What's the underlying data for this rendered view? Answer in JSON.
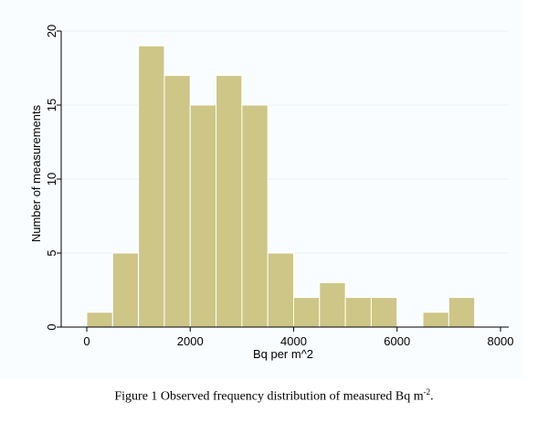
{
  "caption": {
    "main": "Figure 1 Observed frequency distribution of measured Bq m",
    "superscript": "-2",
    "end": "."
  },
  "chart_data": {
    "type": "bar",
    "subtype": "histogram",
    "title": "",
    "xlabel": "Bq per m^2",
    "ylabel": "Number of measurements",
    "xlim": [
      -300,
      8000
    ],
    "ylim": [
      0,
      20
    ],
    "bin_width": 500,
    "bins": [
      {
        "start": 0,
        "end": 500,
        "count": 1
      },
      {
        "start": 500,
        "end": 1000,
        "count": 5
      },
      {
        "start": 1000,
        "end": 1500,
        "count": 19
      },
      {
        "start": 1500,
        "end": 2000,
        "count": 17
      },
      {
        "start": 2000,
        "end": 2500,
        "count": 15
      },
      {
        "start": 2500,
        "end": 3000,
        "count": 17
      },
      {
        "start": 3000,
        "end": 3500,
        "count": 15
      },
      {
        "start": 3500,
        "end": 4000,
        "count": 5
      },
      {
        "start": 4000,
        "end": 4500,
        "count": 2
      },
      {
        "start": 4500,
        "end": 5000,
        "count": 3
      },
      {
        "start": 5000,
        "end": 5500,
        "count": 2
      },
      {
        "start": 5500,
        "end": 6000,
        "count": 2
      },
      {
        "start": 6000,
        "end": 6500,
        "count": 0
      },
      {
        "start": 6500,
        "end": 7000,
        "count": 1
      },
      {
        "start": 7000,
        "end": 7500,
        "count": 2
      }
    ],
    "x_ticks": [
      0,
      2000,
      4000,
      6000,
      8000
    ],
    "x_tick_labels": [
      "0",
      "2000",
      "4000",
      "6000",
      "8000"
    ],
    "y_ticks": [
      0,
      5,
      10,
      15,
      20
    ],
    "y_tick_labels": [
      "0",
      "5",
      "10",
      "15",
      "20"
    ],
    "grid": true,
    "colors": {
      "bar_fill": "#cdc686",
      "bar_stroke": "#ffffff",
      "grid": "#e8eef3",
      "axis": "#000000",
      "panel_bg": "#fafdff"
    }
  }
}
